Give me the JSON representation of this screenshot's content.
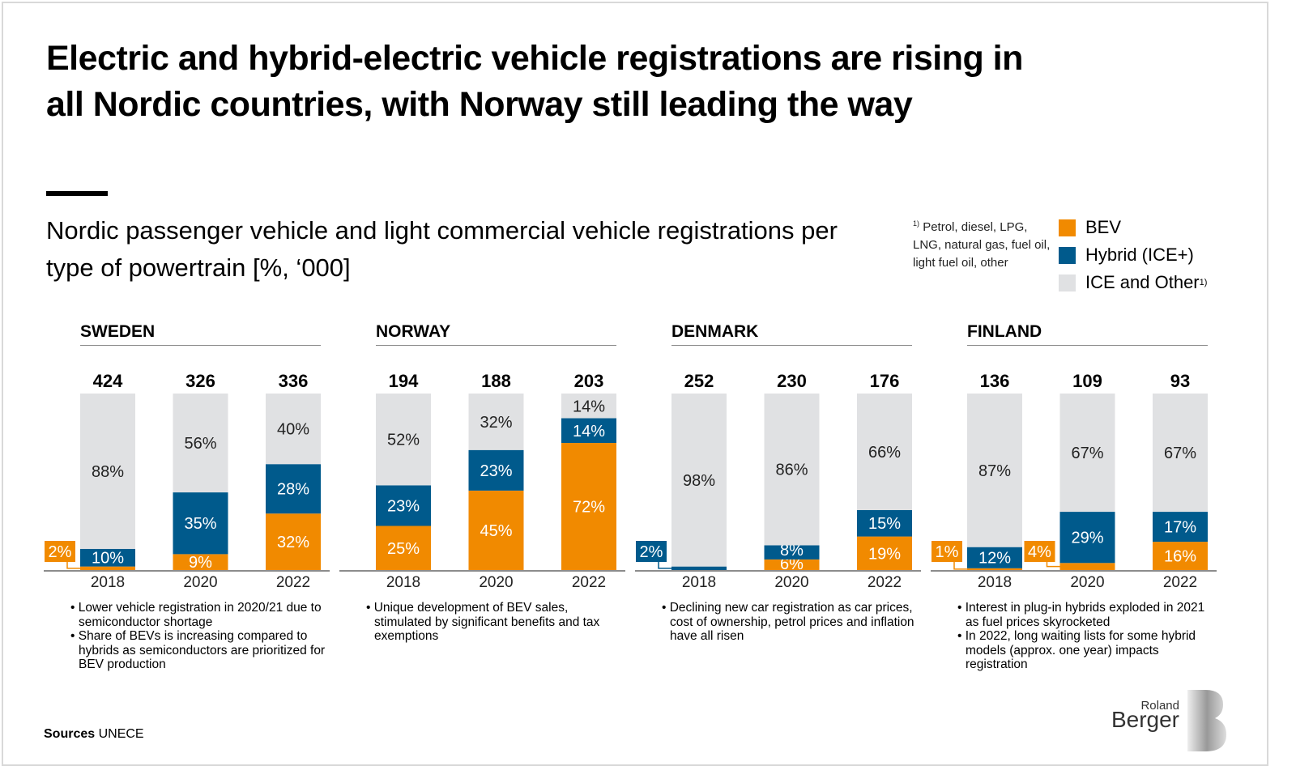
{
  "title": "Electric and hybrid-electric vehicle registrations are rising in all Nordic countries, with Norway still leading the way",
  "subtitle": "Nordic passenger vehicle and light commercial vehicle registrations per type of powertrain [%, ‘000]",
  "footnote": "Petrol, diesel, LPG, LNG, natural gas, fuel oil, light fuel oil, other",
  "footnote_marker": "1)",
  "legend": [
    {
      "label": "BEV",
      "color": "#F18A00"
    },
    {
      "label": "Hybrid (ICE+)",
      "color": "#005A8C"
    },
    {
      "label": "ICE and Other",
      "color": "#E0E1E3",
      "marker": "1)"
    }
  ],
  "sources_label": "Sources",
  "sources": "UNECE",
  "logo": {
    "line1": "Roland",
    "line2": "Berger"
  },
  "notes": [
    [
      "Lower vehicle registration in 2020/21 due to semiconductor shortage",
      "Share of BEVs is increasing compared to hybrids as semiconductors are prioritized for BEV production"
    ],
    [
      "Unique development of BEV sales, stimulated by significant benefits and tax exemptions"
    ],
    [
      "Declining new car registration as car prices, cost of ownership, petrol prices and inflation have all risen"
    ],
    [
      "Interest in plug-in hybrids exploded in 2021 as fuel prices skyrocketed",
      "In 2022, long waiting lists for some hybrid models (approx. one year) impacts registration"
    ]
  ],
  "chart_data": {
    "type": "bar",
    "stacked": true,
    "normalized": true,
    "series_names": [
      "BEV",
      "Hybrid (ICE+)",
      "ICE and Other"
    ],
    "categories": [
      "2018",
      "2020",
      "2022"
    ],
    "panels": [
      {
        "country": "SWEDEN",
        "totals": [
          424,
          326,
          336
        ],
        "bev": [
          2,
          9,
          32
        ],
        "hybrid": [
          10,
          35,
          28
        ],
        "ice": [
          88,
          56,
          40
        ]
      },
      {
        "country": "NORWAY",
        "totals": [
          194,
          188,
          203
        ],
        "bev": [
          25,
          45,
          72
        ],
        "hybrid": [
          23,
          23,
          14
        ],
        "ice": [
          52,
          32,
          14
        ]
      },
      {
        "country": "DENMARK",
        "totals": [
          252,
          230,
          176
        ],
        "bev": [
          0,
          6,
          19
        ],
        "hybrid": [
          2,
          8,
          15
        ],
        "ice": [
          98,
          86,
          66
        ]
      },
      {
        "country": "FINLAND",
        "totals": [
          136,
          109,
          93
        ],
        "bev": [
          1,
          4,
          16
        ],
        "hybrid": [
          12,
          29,
          17
        ],
        "ice": [
          87,
          67,
          67
        ]
      }
    ],
    "total_unit": "'000",
    "value_unit": "%"
  }
}
